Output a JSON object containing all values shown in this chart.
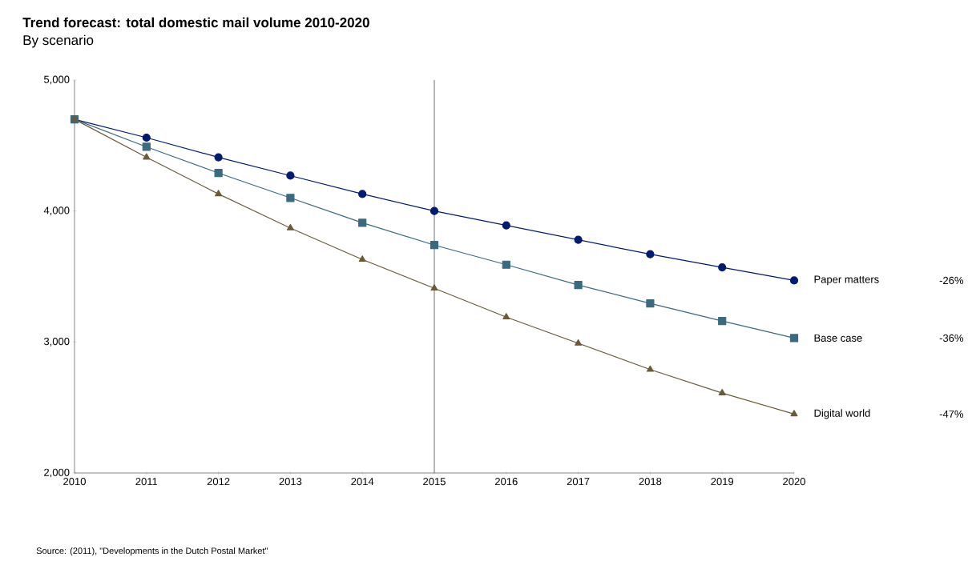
{
  "chart_data": {
    "type": "line",
    "title": "Trend forecast: total domestic mail volume 2010-2020",
    "subtitle": "By scenario",
    "x": [
      2010,
      2011,
      2012,
      2013,
      2014,
      2015,
      2016,
      2017,
      2018,
      2019,
      2020
    ],
    "series": [
      {
        "name": "Paper matters",
        "color": "#001a70",
        "marker": "circle",
        "values": [
          4700,
          4560,
          4410,
          4270,
          4130,
          4000,
          3890,
          3780,
          3670,
          3570,
          3470
        ]
      },
      {
        "name": "Base case",
        "color": "#3a6a80",
        "marker": "square",
        "values": [
          4700,
          4490,
          4290,
          4100,
          3910,
          3740,
          3590,
          3435,
          3295,
          3160,
          3030
        ]
      },
      {
        "name": "Digital world",
        "color": "#6b5a3a",
        "marker": "triangle",
        "values": [
          4700,
          4410,
          4130,
          3870,
          3630,
          3410,
          3190,
          2990,
          2790,
          2610,
          2450
        ]
      }
    ],
    "xlim": [
      2010,
      2020
    ],
    "xticks": [
      2010,
      2011,
      2012,
      2013,
      2014,
      2015,
      2016,
      2017,
      2018,
      2019,
      2020
    ],
    "ylim": [
      2000,
      5000
    ],
    "yticks": [
      {
        "value": 2000,
        "label": "2,000"
      },
      {
        "value": 3000,
        "label": "3,000"
      },
      {
        "value": 4000,
        "label": "4,000"
      },
      {
        "value": 5000,
        "label": "5,000"
      }
    ],
    "ref_lines": [
      {
        "axis": "x",
        "value": 2015,
        "color": "#6e6e6e"
      }
    ],
    "annotations": [
      "-26%",
      "-36%",
      "-47%",
      "Source: (2011), \"Developments in the Dutch Postal Market\""
    ]
  }
}
